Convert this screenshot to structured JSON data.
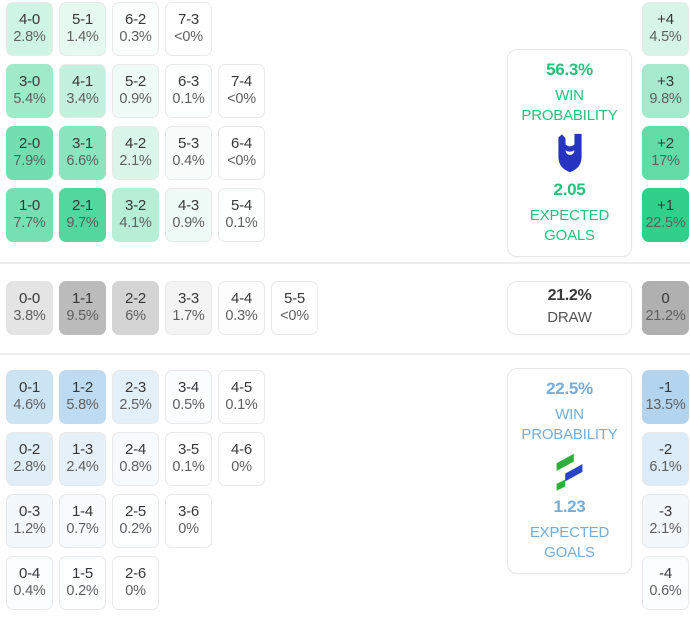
{
  "colors": {
    "home_base": "#2bce87",
    "draw_base": "#a9a9a9",
    "away_base": "#7bb5e3",
    "home_text": "#25c07c",
    "away_text": "#76acd8",
    "divider": "#ededed",
    "home_logo_blue": "#2733c1",
    "away_logo_green": "#2fae3e",
    "away_logo_blue": "#2744c6"
  },
  "scales": {
    "matrix_max": 12,
    "diff_max": 23
  },
  "chart_data": {
    "type": "heatmap",
    "title": "Correct score probability matrix with win / draw / loss summary",
    "home": {
      "matrix": [
        [
          {
            "score": "4-0",
            "pct": "2.8%",
            "p": 2.8
          },
          {
            "score": "5-1",
            "pct": "1.4%",
            "p": 1.4
          },
          {
            "score": "6-2",
            "pct": "0.3%",
            "p": 0.3
          },
          {
            "score": "7-3",
            "pct": "<0%",
            "p": 0
          }
        ],
        [
          {
            "score": "3-0",
            "pct": "5.4%",
            "p": 5.4
          },
          {
            "score": "4-1",
            "pct": "3.4%",
            "p": 3.4
          },
          {
            "score": "5-2",
            "pct": "0.9%",
            "p": 0.9
          },
          {
            "score": "6-3",
            "pct": "0.1%",
            "p": 0.1
          },
          {
            "score": "7-4",
            "pct": "<0%",
            "p": 0
          }
        ],
        [
          {
            "score": "2-0",
            "pct": "7.9%",
            "p": 7.9
          },
          {
            "score": "3-1",
            "pct": "6.6%",
            "p": 6.6
          },
          {
            "score": "4-2",
            "pct": "2.1%",
            "p": 2.1
          },
          {
            "score": "5-3",
            "pct": "0.4%",
            "p": 0.4
          },
          {
            "score": "6-4",
            "pct": "<0%",
            "p": 0
          }
        ],
        [
          {
            "score": "1-0",
            "pct": "7.7%",
            "p": 7.7
          },
          {
            "score": "2-1",
            "pct": "9.7%",
            "p": 9.7
          },
          {
            "score": "3-2",
            "pct": "4.1%",
            "p": 4.1
          },
          {
            "score": "4-3",
            "pct": "0.9%",
            "p": 0.9
          },
          {
            "score": "5-4",
            "pct": "0.1%",
            "p": 0.1
          }
        ]
      ],
      "diff": [
        [
          {
            "score": "+4",
            "pct": "4.5%",
            "p": 4.5
          }
        ],
        [
          {
            "score": "+3",
            "pct": "9.8%",
            "p": 9.8
          }
        ],
        [
          {
            "score": "+2",
            "pct": "17%",
            "p": 17
          }
        ],
        [
          {
            "score": "+1",
            "pct": "22.5%",
            "p": 22.5
          }
        ]
      ],
      "panel": {
        "win_value": "56.3%",
        "win_label": "WIN PROBABILITY",
        "xg_value": "2.05",
        "xg_label": "EXPECTED GOALS",
        "logo": "al-hilal-crest"
      }
    },
    "draw": {
      "matrix": [
        [
          {
            "score": "0-0",
            "pct": "3.8%",
            "p": 3.8
          },
          {
            "score": "1-1",
            "pct": "9.5%",
            "p": 9.5
          },
          {
            "score": "2-2",
            "pct": "6%",
            "p": 6
          },
          {
            "score": "3-3",
            "pct": "1.7%",
            "p": 1.7
          },
          {
            "score": "4-4",
            "pct": "0.3%",
            "p": 0.3
          },
          {
            "score": "5-5",
            "pct": "<0%",
            "p": 0
          }
        ]
      ],
      "diff": [
        [
          {
            "score": "0",
            "pct": "21.2%",
            "p": 21.2
          }
        ]
      ],
      "panel": {
        "value": "21.2%",
        "label": "DRAW"
      }
    },
    "away": {
      "matrix": [
        [
          {
            "score": "0-1",
            "pct": "4.6%",
            "p": 4.6
          },
          {
            "score": "1-2",
            "pct": "5.8%",
            "p": 5.8
          },
          {
            "score": "2-3",
            "pct": "2.5%",
            "p": 2.5
          },
          {
            "score": "3-4",
            "pct": "0.5%",
            "p": 0.5
          },
          {
            "score": "4-5",
            "pct": "0.1%",
            "p": 0.1
          }
        ],
        [
          {
            "score": "0-2",
            "pct": "2.8%",
            "p": 2.8
          },
          {
            "score": "1-3",
            "pct": "2.4%",
            "p": 2.4
          },
          {
            "score": "2-4",
            "pct": "0.8%",
            "p": 0.8
          },
          {
            "score": "3-5",
            "pct": "0.1%",
            "p": 0.1
          },
          {
            "score": "4-6",
            "pct": "0%",
            "p": 0
          }
        ],
        [
          {
            "score": "0-3",
            "pct": "1.2%",
            "p": 1.2
          },
          {
            "score": "1-4",
            "pct": "0.7%",
            "p": 0.7
          },
          {
            "score": "2-5",
            "pct": "0.2%",
            "p": 0.2
          },
          {
            "score": "3-6",
            "pct": "0%",
            "p": 0
          }
        ],
        [
          {
            "score": "0-4",
            "pct": "0.4%",
            "p": 0.4
          },
          {
            "score": "1-5",
            "pct": "0.2%",
            "p": 0.2
          },
          {
            "score": "2-6",
            "pct": "0%",
            "p": 0
          }
        ]
      ],
      "diff": [
        [
          {
            "score": "-1",
            "pct": "13.5%",
            "p": 13.5
          }
        ],
        [
          {
            "score": "-2",
            "pct": "6.1%",
            "p": 6.1
          }
        ],
        [
          {
            "score": "-3",
            "pct": "2.1%",
            "p": 2.1
          }
        ],
        [
          {
            "score": "-4",
            "pct": "0.6%",
            "p": 0.6
          }
        ]
      ],
      "panel": {
        "win_value": "22.5%",
        "win_label": "WIN PROBABILITY",
        "xg_value": "1.23",
        "xg_label": "EXPECTED GOALS",
        "logo": "away-team-crest"
      }
    }
  }
}
